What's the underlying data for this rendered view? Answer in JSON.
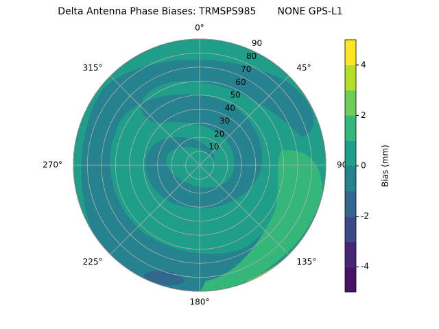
{
  "chart_data": {
    "type": "polar_contour",
    "title": "Delta Antenna Phase Biases: TRMSPS985       NONE GPS-L1",
    "theta_ticks": [
      {
        "value": 0,
        "label": "0°"
      },
      {
        "value": 45,
        "label": "45°"
      },
      {
        "value": 90,
        "label": "90°"
      },
      {
        "value": 135,
        "label": "135°"
      },
      {
        "value": 180,
        "label": "180°"
      },
      {
        "value": 225,
        "label": "225°"
      },
      {
        "value": 270,
        "label": "270°"
      },
      {
        "value": 315,
        "label": "315°"
      }
    ],
    "rlim": [
      0,
      90
    ],
    "rticks": [
      10,
      20,
      30,
      40,
      50,
      60,
      70,
      80,
      90
    ],
    "grid": true,
    "colorbar": {
      "label": "Bias (mm)",
      "lim": [
        -5,
        5
      ],
      "ticks": [
        -4,
        -2,
        0,
        2,
        4
      ],
      "levels": [
        -5,
        -4,
        -3,
        -2,
        -1,
        0,
        1,
        2,
        3,
        4,
        5
      ],
      "colors": [
        "#471365",
        "#482677",
        "#3e4989",
        "#31688e",
        "#26828e",
        "#1f9e89",
        "#35b779",
        "#6ece58",
        "#b5de2b",
        "#fde725"
      ]
    }
  }
}
